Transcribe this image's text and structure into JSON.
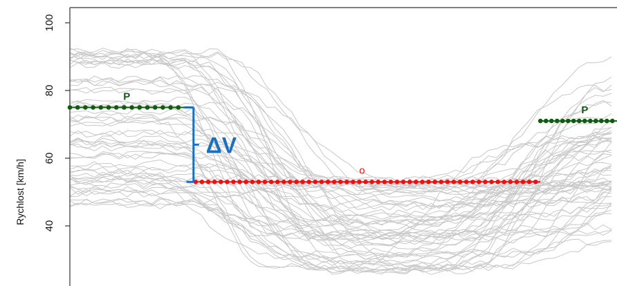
{
  "chart_data": {
    "type": "line",
    "title": "",
    "xlabel": "",
    "ylabel": "Rychlost [km/h]",
    "ylim": [
      20,
      100
    ],
    "yticks": [
      40,
      60,
      80,
      100
    ],
    "y_tick_labels": [
      "40",
      "60",
      "80",
      "100"
    ],
    "x_range": [
      0,
      100
    ],
    "grid": false,
    "colors": {
      "background_traces": "#c8c8c8",
      "approach_speed": "#0f5c0f",
      "minimum_speed": "#ee1111",
      "delta_v": "#1a6fbf",
      "axes": "#333333"
    },
    "background_traces_note": "",
    "background_traces_count": 60,
    "annotations": {
      "approach_left": {
        "label": "P",
        "speed": 75,
        "x_from": 0,
        "x_to": 21
      },
      "approach_right": {
        "label": "P",
        "speed": 71,
        "x_from": 86,
        "x_to": 100
      },
      "minimum": {
        "label": "o",
        "speed": 53,
        "x_from": 23,
        "x_to": 86
      },
      "delta_v": {
        "label": "ΔV",
        "from": 53,
        "to": 75
      }
    }
  }
}
